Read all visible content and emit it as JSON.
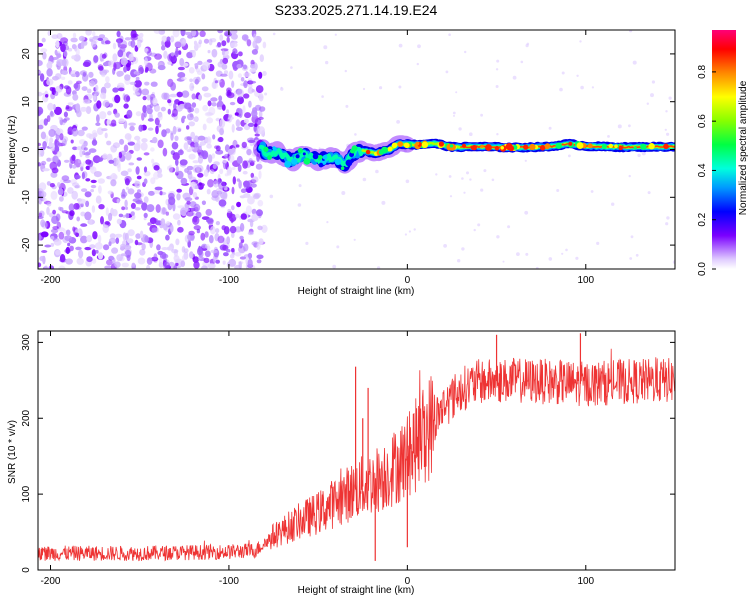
{
  "chart_data": [
    {
      "type": "heatmap",
      "title": "S233.2025.271.14.19.E24",
      "xlabel": "Height of straight line (km)",
      "ylabel": "Frequency (Hz)",
      "xlim": [
        -207,
        150
      ],
      "ylim": [
        -25,
        25
      ],
      "xticks": [
        -200,
        -100,
        0,
        100
      ],
      "yticks": [
        -20,
        -10,
        0,
        10,
        20
      ],
      "colorbar": {
        "label": "Normalized spectral amplitude",
        "range": [
          0,
          0.97
        ],
        "ticks": [
          "0.0",
          "0.2",
          "0.4",
          "0.6",
          "0.8"
        ],
        "tick_values": [
          0,
          0.2,
          0.4,
          0.6,
          0.8
        ]
      },
      "noise_region": {
        "x": [
          -207,
          -80
        ],
        "y": [
          -25,
          25
        ]
      },
      "signal_track": [
        {
          "x": -80,
          "y": -1.2
        },
        {
          "x": -72,
          "y": -0.5
        },
        {
          "x": -65,
          "y": -2.5
        },
        {
          "x": -58,
          "y": -1.0
        },
        {
          "x": -50,
          "y": -2.2
        },
        {
          "x": -42,
          "y": -1.5
        },
        {
          "x": -35,
          "y": -3.0
        },
        {
          "x": -30,
          "y": -0.8
        },
        {
          "x": -25,
          "y": -0.2
        },
        {
          "x": -18,
          "y": -0.8
        },
        {
          "x": -10,
          "y": 0.0
        },
        {
          "x": -5,
          "y": 1.2
        },
        {
          "x": 5,
          "y": 1.0
        },
        {
          "x": 15,
          "y": 1.3
        },
        {
          "x": 25,
          "y": 0.5
        },
        {
          "x": 40,
          "y": 0.6
        },
        {
          "x": 60,
          "y": 0.4
        },
        {
          "x": 80,
          "y": 0.6
        },
        {
          "x": 90,
          "y": 1.2
        },
        {
          "x": 100,
          "y": 0.7
        },
        {
          "x": 120,
          "y": 0.5
        },
        {
          "x": 150,
          "y": 0.6
        }
      ]
    },
    {
      "type": "line",
      "title": "",
      "xlabel": "Height of straight line (km)",
      "ylabel": "SNR (10 * v/v)",
      "xlim": [
        -207,
        150
      ],
      "ylim": [
        0,
        315
      ],
      "xticks": [
        -200,
        -100,
        0,
        100
      ],
      "yticks": [
        0,
        100,
        200,
        300
      ],
      "series": [
        {
          "name": "SNR",
          "color": "#ee3333",
          "trend": [
            {
              "x": -207,
              "y": 22
            },
            {
              "x": -150,
              "y": 22
            },
            {
              "x": -100,
              "y": 24
            },
            {
              "x": -85,
              "y": 26
            },
            {
              "x": -75,
              "y": 45
            },
            {
              "x": -60,
              "y": 65
            },
            {
              "x": -50,
              "y": 75
            },
            {
              "x": -40,
              "y": 90
            },
            {
              "x": -30,
              "y": 105
            },
            {
              "x": -20,
              "y": 115
            },
            {
              "x": -10,
              "y": 130
            },
            {
              "x": 0,
              "y": 150
            },
            {
              "x": 10,
              "y": 180
            },
            {
              "x": 20,
              "y": 215
            },
            {
              "x": 30,
              "y": 238
            },
            {
              "x": 40,
              "y": 248
            },
            {
              "x": 60,
              "y": 250
            },
            {
              "x": 80,
              "y": 248
            },
            {
              "x": 100,
              "y": 245
            },
            {
              "x": 120,
              "y": 248
            },
            {
              "x": 150,
              "y": 250
            }
          ],
          "spikes": [
            {
              "x": -29,
              "y": 268
            },
            {
              "x": -25,
              "y": 200
            },
            {
              "x": -22,
              "y": 240
            },
            {
              "x": -18,
              "y": 12
            },
            {
              "x": 0,
              "y": 30
            },
            {
              "x": 50,
              "y": 310
            },
            {
              "x": 97,
              "y": 312
            }
          ]
        }
      ]
    }
  ]
}
